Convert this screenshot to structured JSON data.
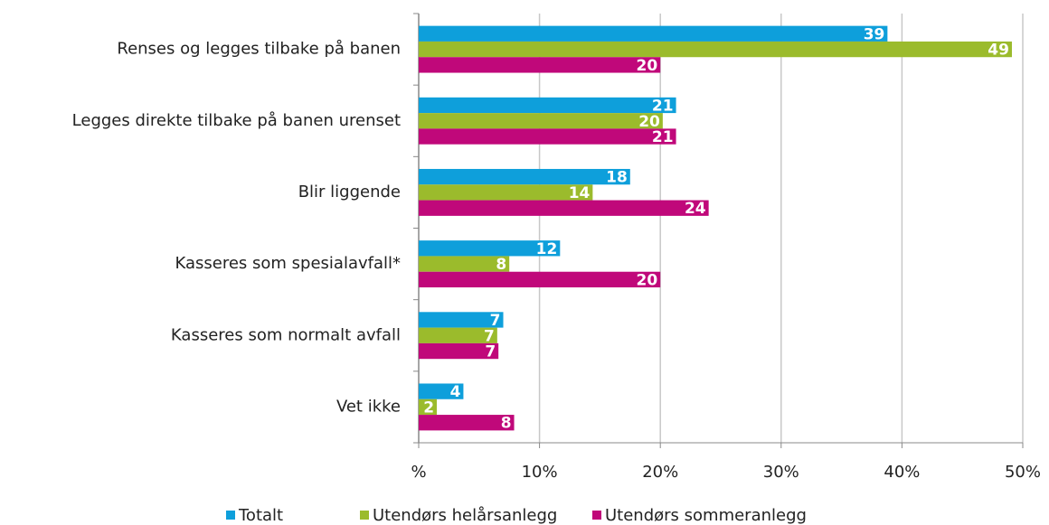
{
  "chart_data": {
    "type": "hbar",
    "categories": [
      "Renses og legges tilbake på banen",
      "Legges direkte tilbake på banen urenset",
      "Blir liggende",
      "Kasseres som spesialavfall*",
      "Kasseres som normalt avfall",
      "Vet ikke"
    ],
    "series": [
      {
        "name": "Totalt",
        "color": "#0e9fdb",
        "values": [
          38.8,
          21.3,
          17.5,
          11.7,
          7,
          3.7
        ],
        "value_labels": [
          "39",
          "21",
          "18",
          "12",
          "7",
          "4"
        ]
      },
      {
        "name": "Utendørs helårsanlegg",
        "color": "#9bbb2c",
        "values": [
          49.1,
          20.2,
          14.4,
          7.5,
          6.5,
          1.5
        ],
        "value_labels": [
          "49",
          "20",
          "14",
          "8",
          "7",
          "2"
        ]
      },
      {
        "name": "Utendørs sommeranlegg",
        "color": "#c0087a",
        "values": [
          20,
          21.3,
          24,
          20,
          6.6,
          7.9
        ],
        "value_labels": [
          "20",
          "21",
          "24",
          "20",
          "7",
          "8"
        ]
      }
    ],
    "xlim": [
      0,
      50
    ],
    "xticks": [
      {
        "value": 0,
        "label": "%"
      },
      {
        "value": 10,
        "label": "10%"
      },
      {
        "value": 20,
        "label": "20%"
      },
      {
        "value": 30,
        "label": "30%"
      },
      {
        "value": 40,
        "label": "40%"
      },
      {
        "value": 50,
        "label": "50%"
      }
    ],
    "grid": true,
    "legend": "bottom"
  }
}
